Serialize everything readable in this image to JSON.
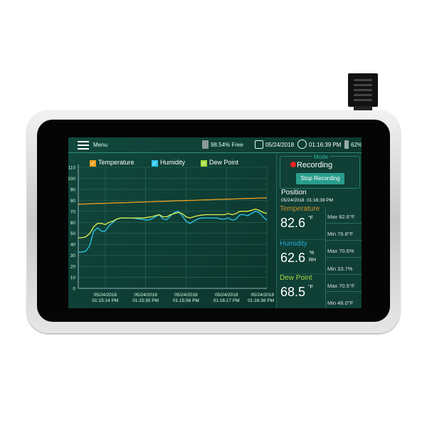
{
  "topbar": {
    "menu_label": "Menu",
    "storage": "98.54% Free",
    "date": "05/24/2018",
    "time": "01:16:39 PM",
    "battery": "62%"
  },
  "legend": [
    {
      "label": "Temperature",
      "color": "#f0a020"
    },
    {
      "label": "Humidity",
      "color": "#30c8f0"
    },
    {
      "label": "Dew Point",
      "color": "#c8f040"
    }
  ],
  "panel": {
    "mode_label": "Mode",
    "status": "Recording",
    "stop_button": "Stop Recording",
    "position_label": "Position",
    "position_time": "05/24/2018  01:16:39 PM",
    "readings": [
      {
        "label": "Temperature",
        "value": "82.6",
        "unit": "°F",
        "max": "Max 82.6°F",
        "min": "Min 76.8°F",
        "color": "#d09030"
      },
      {
        "label": "Humidity",
        "value": "62.6",
        "unit": "%",
        "unit2": "RH",
        "max": "Max 70.6%",
        "min": "Min 33.7%",
        "color": "#2aa8d8"
      },
      {
        "label": "Dew Point",
        "value": "68.5",
        "unit": "°F",
        "max": "Max 70.5°F",
        "min": "Min 46.0°F",
        "color": "#a8d848"
      }
    ]
  },
  "chart_data": {
    "type": "line",
    "ylim": [
      0,
      110
    ],
    "yticks": [
      "0",
      "10",
      "20",
      "30",
      "40",
      "50",
      "60",
      "70",
      "80",
      "90",
      "100",
      "110"
    ],
    "grid": true,
    "legend_placement": "top",
    "xticks": [
      {
        "date": "05/24/2018",
        "time": "01:15:14 PM"
      },
      {
        "date": "05/24/2018",
        "time": "01:15:35 PM"
      },
      {
        "date": "05/24/2018",
        "time": "01:15:56 PM"
      },
      {
        "date": "05/24/2018",
        "time": "01:16:17 PM"
      },
      {
        "date": "05/24/2018",
        "time": "01:16:38 PM"
      }
    ],
    "x": [
      "01:15:00",
      "01:15:02",
      "01:15:04",
      "01:15:06",
      "01:15:08",
      "01:15:10",
      "01:15:12",
      "01:15:14",
      "01:15:16",
      "01:15:18",
      "01:15:20",
      "01:15:22",
      "01:15:24",
      "01:15:26",
      "01:15:28",
      "01:15:30",
      "01:15:32",
      "01:15:34",
      "01:15:36",
      "01:15:38",
      "01:15:40",
      "01:15:42",
      "01:15:44",
      "01:15:46",
      "01:15:48",
      "01:15:50",
      "01:15:52",
      "01:15:54",
      "01:15:56",
      "01:15:58",
      "01:16:00",
      "01:16:02",
      "01:16:04",
      "01:16:06",
      "01:16:08",
      "01:16:10",
      "01:16:12",
      "01:16:14",
      "01:16:16",
      "01:16:18",
      "01:16:20",
      "01:16:22",
      "01:16:24",
      "01:16:26",
      "01:16:28",
      "01:16:30",
      "01:16:32",
      "01:16:34",
      "01:16:36",
      "01:16:38"
    ],
    "series": [
      {
        "name": "Temperature",
        "color": "#f0a020",
        "values": [
          76.5,
          76.6,
          76.7,
          76.9,
          77.0,
          77.1,
          77.2,
          77.3,
          77.4,
          77.6,
          77.7,
          77.8,
          77.9,
          78.0,
          78.2,
          78.3,
          78.4,
          78.5,
          78.6,
          78.7,
          78.9,
          79.0,
          79.1,
          79.2,
          79.3,
          79.5,
          79.6,
          79.7,
          79.8,
          79.9,
          80.0,
          80.2,
          80.3,
          80.4,
          80.5,
          80.6,
          80.8,
          80.9,
          81.0,
          81.1,
          81.2,
          81.3,
          81.5,
          81.6,
          81.7,
          81.8,
          81.9,
          82.1,
          82.2,
          82.3
        ]
      },
      {
        "name": "Humidity",
        "color": "#30c8f0",
        "values": [
          33,
          33,
          34,
          39,
          52,
          55,
          52,
          52,
          57,
          60,
          63,
          64,
          64,
          64,
          64,
          63.5,
          63,
          62.5,
          62,
          63,
          65,
          67,
          63,
          62.5,
          66,
          69,
          70,
          66,
          61,
          59,
          61,
          63,
          64,
          64,
          64,
          64,
          64,
          63,
          63,
          64,
          62,
          63,
          67,
          67,
          66,
          68,
          70,
          69,
          65,
          62
        ]
      },
      {
        "name": "Dew Point",
        "color": "#e0f050",
        "values": [
          46,
          46,
          47,
          50,
          56,
          59,
          59,
          58,
          60,
          61,
          63,
          64,
          64,
          64,
          64,
          64,
          64,
          64,
          64.5,
          65,
          66,
          67,
          65,
          65,
          67,
          68,
          69,
          68,
          65,
          64,
          65,
          66,
          66.5,
          67,
          67,
          67,
          67,
          67,
          67,
          68,
          67,
          68,
          70,
          70,
          70,
          71,
          72,
          71,
          69,
          68
        ]
      }
    ]
  }
}
